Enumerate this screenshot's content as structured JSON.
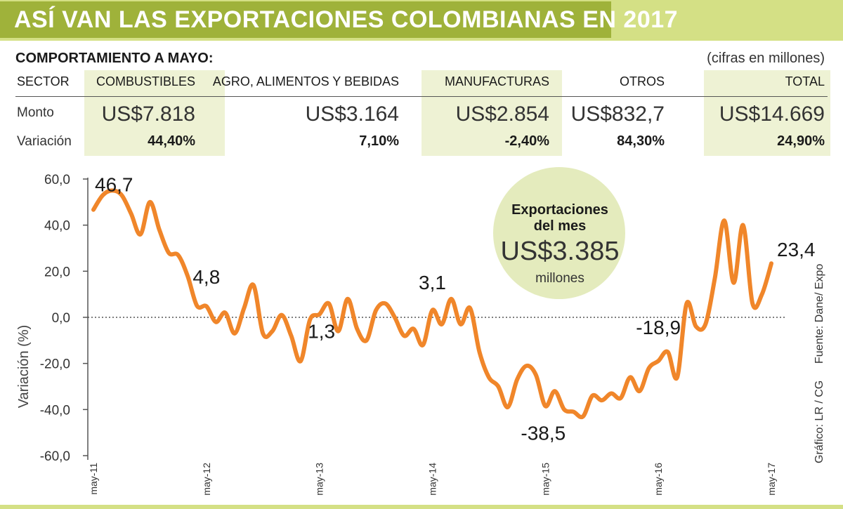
{
  "title": "ASÍ VAN LAS EXPORTACIONES COLOMBIANAS EN 2017",
  "subtitle": "COMPORTAMIENTO A MAYO:",
  "units_note": "(cifras en millones)",
  "table": {
    "sector_label": "SECTOR",
    "monto_label": "Monto",
    "variacion_label": "Variación",
    "columns": [
      {
        "name": "COMBUSTIBLES",
        "monto": "US$7.818",
        "variacion": "44,40%"
      },
      {
        "name": "AGRO, ALIMENTOS Y BEBIDAS",
        "monto": "US$3.164",
        "variacion": "7,10%"
      },
      {
        "name": "MANUFACTURAS",
        "monto": "US$2.854",
        "variacion": "-2,40%"
      },
      {
        "name": "OTROS",
        "monto": "US$832,7",
        "variacion": "84,30%"
      },
      {
        "name": "TOTAL",
        "monto": "US$14.669",
        "variacion": "24,90%"
      }
    ]
  },
  "bubble": {
    "line1": "Exportaciones",
    "line2": "del mes",
    "value": "US$3.385",
    "unit": "millones"
  },
  "source": "Fuente: Dane/ Expo",
  "credit": "Gráfico: LR / CG",
  "colors": {
    "line": "#f0862a",
    "banner": "#9fb23a",
    "banner_bg": "#d4e085",
    "shade": "#eef2d4",
    "bubble": "#e4ebbd"
  },
  "chart_data": {
    "type": "line",
    "ylabel": "Variación (%)",
    "ylim": [
      -60,
      60
    ],
    "yticks": [
      "60,0",
      "40,0",
      "20,0",
      "0,0",
      "-20,0",
      "-40,0",
      "-60,0"
    ],
    "xticks": [
      "may-11",
      "may-12",
      "may-13",
      "may-14",
      "may-15",
      "may-16",
      "may-17"
    ],
    "annotations": [
      {
        "text": "46,7",
        "month": 0,
        "value": 46.7
      },
      {
        "text": "4,8",
        "month": 12,
        "value": 4.8
      },
      {
        "text": "1,3",
        "month": 24,
        "value": 1.3
      },
      {
        "text": "3,1",
        "month": 36,
        "value": 3.1
      },
      {
        "text": "-38,5",
        "month": 48,
        "value": -38.5
      },
      {
        "text": "-18,9",
        "month": 60,
        "value": -18.9
      },
      {
        "text": "23,4",
        "month": 72,
        "value": 23.4
      }
    ],
    "series": [
      {
        "values": [
          46.7,
          53,
          55,
          53,
          45,
          36,
          50,
          38,
          28,
          27,
          18,
          5,
          4.8,
          -2,
          2,
          -7,
          4,
          14,
          -7,
          -6,
          1,
          -8,
          -19,
          -1,
          1.3,
          6,
          -6,
          8,
          -5,
          -10,
          3,
          6,
          0,
          -8,
          -5,
          -12,
          3.1,
          -3,
          8,
          -3,
          4,
          -15,
          -26,
          -30,
          -39,
          -27,
          -21,
          -25,
          -38.5,
          -32,
          -40,
          -41,
          -43,
          -34,
          -36,
          -33,
          -35,
          -26,
          -32,
          -22,
          -18.9,
          -15,
          -26,
          6,
          -4,
          -3,
          17,
          42,
          15,
          40,
          6,
          10,
          23.4
        ]
      }
    ]
  }
}
